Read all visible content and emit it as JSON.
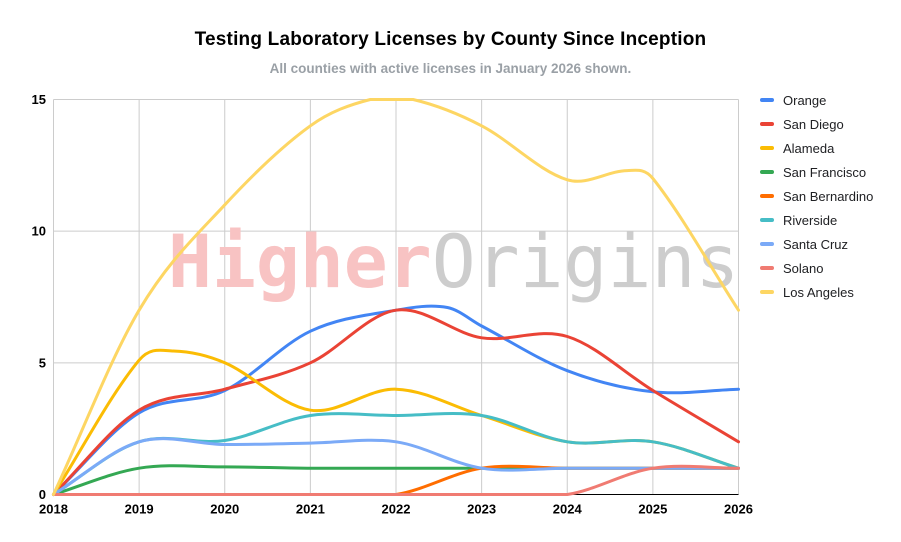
{
  "header": {
    "title": "Testing Laboratory Licenses by County Since Inception",
    "subtitle": "All counties with active licenses in January 2026 shown."
  },
  "watermark": {
    "part1": "Higher",
    "part2": "Origins",
    "part1_color": "#f8c3c3",
    "part2_color": "#cdcdcd"
  },
  "style": {
    "gridline_color": "#cccccc",
    "axis_line_color": "#000000",
    "tick_label_color": "#000000",
    "legend_text_color": "#202124"
  },
  "chart_data": {
    "type": "line",
    "title": "Testing Laboratory Licenses by County Since Inception",
    "subtitle": "All counties with active licenses in January 2026 shown.",
    "xlabel": "",
    "ylabel": "",
    "x_range": [
      2018,
      2026
    ],
    "ylim": [
      0,
      15
    ],
    "x_ticks": [
      2018,
      2019,
      2020,
      2021,
      2022,
      2023,
      2024,
      2025,
      2026
    ],
    "y_ticks": [
      0,
      5,
      10,
      15
    ],
    "grid": true,
    "legend_position": "right",
    "curve": "smooth",
    "series": [
      {
        "name": "Orange",
        "color": "#4285F4",
        "points": [
          [
            2018,
            0
          ],
          [
            2019,
            3.1
          ],
          [
            2020,
            3.95
          ],
          [
            2021,
            6.2
          ],
          [
            2022,
            7
          ],
          [
            2022.6,
            7.1
          ],
          [
            2023,
            6.4
          ],
          [
            2024,
            4.7
          ],
          [
            2025,
            3.9
          ],
          [
            2026,
            4
          ]
        ]
      },
      {
        "name": "San Diego",
        "color": "#EA4335",
        "points": [
          [
            2018,
            0
          ],
          [
            2019,
            3.2
          ],
          [
            2020,
            4
          ],
          [
            2021,
            5
          ],
          [
            2022,
            7
          ],
          [
            2023,
            5.95
          ],
          [
            2024,
            6
          ],
          [
            2025,
            3.95
          ],
          [
            2026,
            2
          ]
        ]
      },
      {
        "name": "Alameda",
        "color": "#FBBC04",
        "points": [
          [
            2018,
            0
          ],
          [
            2019,
            5.1
          ],
          [
            2019.4,
            5.45
          ],
          [
            2020,
            5
          ],
          [
            2021,
            3.2
          ],
          [
            2022,
            4
          ],
          [
            2023,
            3
          ],
          [
            2024,
            2
          ],
          [
            2025,
            2
          ],
          [
            2026,
            1
          ]
        ]
      },
      {
        "name": "San Francisco",
        "color": "#34A853",
        "points": [
          [
            2018,
            0
          ],
          [
            2019,
            1
          ],
          [
            2020,
            1.05
          ],
          [
            2021,
            1
          ],
          [
            2022,
            1
          ],
          [
            2023,
            1
          ],
          [
            2024,
            1
          ],
          [
            2025,
            1
          ],
          [
            2026,
            1
          ]
        ]
      },
      {
        "name": "San Bernardino",
        "color": "#FF6D00",
        "points": [
          [
            2018,
            0
          ],
          [
            2019,
            0
          ],
          [
            2020,
            0
          ],
          [
            2021,
            0
          ],
          [
            2022,
            0
          ],
          [
            2023,
            1
          ],
          [
            2024,
            1
          ],
          [
            2025,
            1
          ],
          [
            2026,
            1
          ]
        ]
      },
      {
        "name": "Riverside",
        "color": "#46BDC6",
        "points": [
          [
            2018,
            0
          ],
          [
            2019,
            2
          ],
          [
            2020,
            2.05
          ],
          [
            2021,
            3
          ],
          [
            2022,
            3
          ],
          [
            2023,
            3
          ],
          [
            2024,
            2
          ],
          [
            2025,
            2
          ],
          [
            2026,
            1
          ]
        ]
      },
      {
        "name": "Santa Cruz",
        "color": "#7BAAF7",
        "points": [
          [
            2018,
            0
          ],
          [
            2019,
            2
          ],
          [
            2020,
            1.9
          ],
          [
            2021,
            1.95
          ],
          [
            2022,
            2
          ],
          [
            2023,
            1
          ],
          [
            2024,
            1
          ],
          [
            2025,
            1
          ],
          [
            2026,
            1
          ]
        ]
      },
      {
        "name": "Solano",
        "color": "#F07B72",
        "points": [
          [
            2018,
            0
          ],
          [
            2019,
            0
          ],
          [
            2020,
            0
          ],
          [
            2021,
            0
          ],
          [
            2022,
            0
          ],
          [
            2023,
            0
          ],
          [
            2024,
            0
          ],
          [
            2025,
            1
          ],
          [
            2026,
            1
          ]
        ]
      },
      {
        "name": "Los Angeles",
        "color": "#FDD663",
        "points": [
          [
            2018,
            0
          ],
          [
            2019,
            7
          ],
          [
            2020,
            11
          ],
          [
            2021,
            14
          ],
          [
            2021.7,
            15
          ],
          [
            2022.2,
            15
          ],
          [
            2023,
            14
          ],
          [
            2024,
            11.95
          ],
          [
            2024.7,
            12.3
          ],
          [
            2025,
            12
          ],
          [
            2026,
            7
          ]
        ]
      }
    ]
  }
}
